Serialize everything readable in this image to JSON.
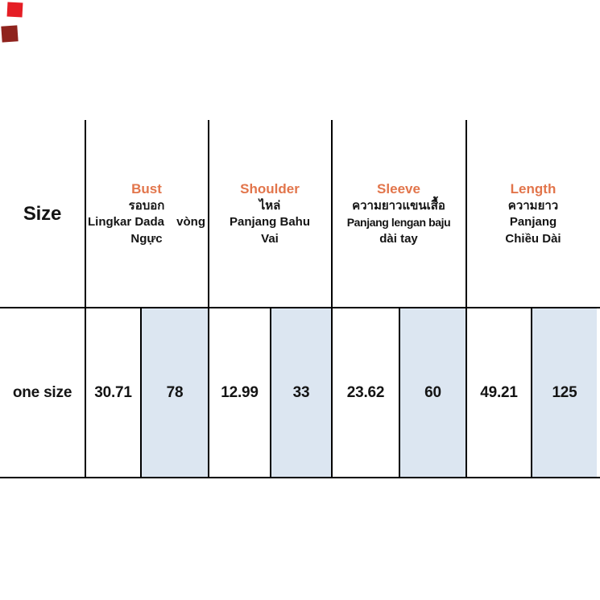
{
  "colors": {
    "accent_orange": "#e2754b",
    "cell_blue": "#dce6f1",
    "grid_line": "#000000",
    "text": "#141414",
    "sticker_red": "#e51e25",
    "sticker_dark_red": "#8f231d",
    "background": "#ffffff"
  },
  "decorations": {
    "sticker_1_color": "#e51e25",
    "sticker_2_color": "#8f231d"
  },
  "size_column": {
    "header": "Size",
    "row_label": "one size"
  },
  "columns": [
    {
      "en": "Bust",
      "th": "รอบอก",
      "local_a": "Lingkar Dada",
      "local_b": "vòng",
      "local_c": "Ngực",
      "inch": "30.71",
      "cm": "78"
    },
    {
      "en": "Shoulder",
      "th": "ไหล่",
      "local_a": "Panjang Bahu",
      "local_c": "Vai",
      "inch": "12.99",
      "cm": "33"
    },
    {
      "en": "Sleeve",
      "th": "ความยาวแขนเสื้อ",
      "local_a": "Panjang lengan baju",
      "local_c": "dài tay",
      "inch": "23.62",
      "cm": "60"
    },
    {
      "en": "Length",
      "th": "ความยาว",
      "local_a": "Panjang",
      "local_c": "Chiều Dài",
      "inch": "49.21",
      "cm": "125"
    }
  ]
}
